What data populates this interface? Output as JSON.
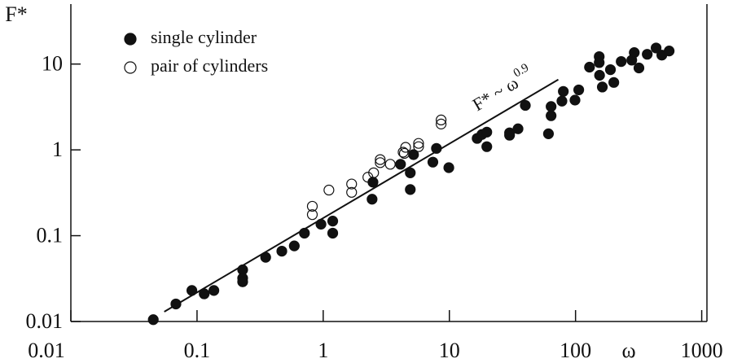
{
  "chart_data": {
    "type": "scatter",
    "ylabel": "F*",
    "xlabel": "ω",
    "log_x": true,
    "log_y": true,
    "xlim": [
      0.01,
      1100
    ],
    "ylim": [
      0.01,
      50
    ],
    "xticks": [
      0.01,
      0.1,
      1,
      10,
      100,
      1000
    ],
    "yticks": [
      0.01,
      0.1,
      1,
      10
    ],
    "legend": "top-left",
    "series": [
      {
        "name": "single cylinder",
        "color": "#111111",
        "filled": true,
        "x": [
          0.045,
          0.068,
          0.091,
          0.114,
          0.136,
          0.23,
          0.23,
          0.23,
          0.35,
          0.47,
          0.59,
          0.71,
          0.96,
          1.19,
          1.19,
          2.44,
          2.48,
          4.1,
          4.9,
          4.9,
          5.2,
          7.4,
          7.9,
          9.9,
          16.6,
          18.1,
          19.8,
          19.8,
          30,
          30,
          35,
          40,
          61,
          64,
          64,
          78,
          80,
          99,
          106,
          129,
          154,
          154,
          155,
          163,
          189,
          201,
          230,
          279,
          292,
          318,
          370,
          435,
          483,
          552
        ],
        "values": [
          0.0105,
          0.016,
          0.023,
          0.021,
          0.023,
          0.04,
          0.032,
          0.029,
          0.056,
          0.066,
          0.076,
          0.107,
          0.136,
          0.148,
          0.107,
          0.266,
          0.42,
          0.68,
          0.54,
          0.345,
          0.88,
          0.72,
          1.04,
          0.62,
          1.36,
          1.51,
          1.61,
          1.09,
          1.58,
          1.48,
          1.76,
          3.3,
          1.54,
          2.5,
          3.2,
          3.7,
          4.8,
          3.8,
          5.0,
          9.2,
          12.2,
          10.4,
          7.4,
          5.4,
          8.6,
          6.1,
          10.7,
          11.1,
          13.6,
          9.0,
          13.0,
          15.4,
          12.7,
          14.2
        ]
      },
      {
        "name": "pair of cylinders",
        "color": "#111111",
        "filled": false,
        "x": [
          0.82,
          0.82,
          1.11,
          1.68,
          1.68,
          2.26,
          2.51,
          2.83,
          2.83,
          3.4,
          4.3,
          4.5,
          4.4,
          5.7,
          5.7,
          8.6,
          8.6
        ],
        "values": [
          0.22,
          0.176,
          0.34,
          0.4,
          0.32,
          0.48,
          0.54,
          0.77,
          0.71,
          0.68,
          0.94,
          1.07,
          0.91,
          1.19,
          1.09,
          2.23,
          2.0
        ]
      }
    ],
    "fit": {
      "type": "line",
      "color": "#111111",
      "x": [
        0.055,
        73
      ],
      "values": [
        0.013,
        6.6
      ],
      "annotation": "F* ~ ω",
      "annotation_exponent": "0.9"
    }
  }
}
